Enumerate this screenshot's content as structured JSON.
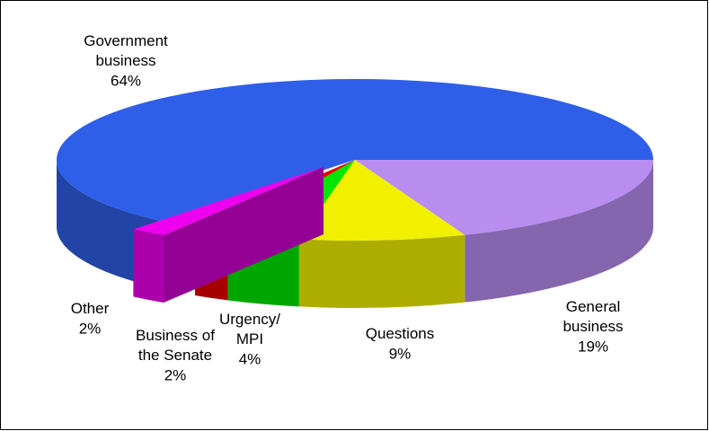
{
  "chart_data": {
    "type": "pie3d",
    "categories": [
      "General\nbusiness",
      "Questions",
      "Urgency/\nMPI",
      "Business of\nthe Senate",
      "Other",
      "Government\nbusiness"
    ],
    "values": [
      19,
      9,
      4,
      2,
      2,
      64
    ],
    "value_labels": [
      "19%",
      "9%",
      "4%",
      "2%",
      "2%",
      "64%"
    ],
    "colors": [
      "#b98cf0",
      "#f0f000",
      "#00e600",
      "#e60000",
      "#ee00ee",
      "#2f5fe8"
    ]
  }
}
